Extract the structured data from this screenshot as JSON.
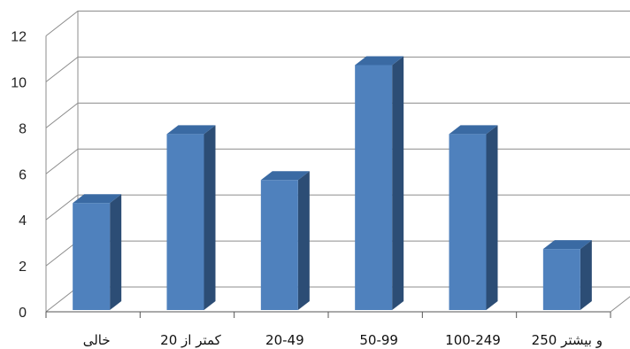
{
  "chart_data": {
    "type": "bar",
    "categories": [
      "خالی",
      "کمتر از 20",
      "20-49",
      "50-99",
      "100-249",
      "250 و بیشتر"
    ],
    "values": [
      5,
      8,
      6,
      11,
      8,
      3
    ],
    "yticks": [
      "0",
      "2",
      "4",
      "6",
      "8",
      "10",
      "12"
    ],
    "ylim": [
      0,
      12
    ],
    "grid": true,
    "title": "",
    "xlabel": "",
    "ylabel": ""
  },
  "colors": {
    "bar_front": "#4f81bd",
    "bar_side": "#2c4d75",
    "bar_top": "#3a6aa3",
    "grid": "#8c8c8c",
    "axis": "#555555"
  }
}
